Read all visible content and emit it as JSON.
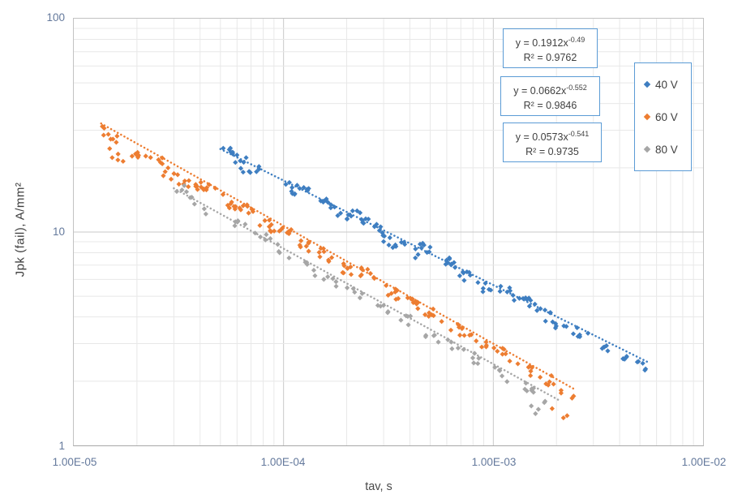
{
  "axes": {
    "x": {
      "title": "tav, s",
      "ticks": [
        "1.00E-05",
        "1.00E-04",
        "1.00E-03",
        "1.00E-02"
      ]
    },
    "y": {
      "title": "Jpk (fail),  A/mm²",
      "ticks": [
        "100",
        "10",
        "1"
      ]
    }
  },
  "annotations": {
    "boxes": [
      {
        "eq_base": "y = 0.1912x",
        "eq_exp": "-0.49",
        "r2": "R² = 0.9762"
      },
      {
        "eq_base": "y = 0.0662x",
        "eq_exp": "-0.552",
        "r2": "R² = 0.9846"
      },
      {
        "eq_base": "y = 0.0573x",
        "eq_exp": "-0.541",
        "r2": "R² = 0.9735"
      }
    ]
  },
  "legend": {
    "items": [
      {
        "label": "40 V"
      },
      {
        "label": "60 V"
      },
      {
        "label": "80 V"
      }
    ]
  },
  "colors": {
    "grid_minor": "#e8e8e8",
    "grid_major": "#c9c9c9",
    "tick_label": "#64799c",
    "annotation_border": "#5b9bd5"
  },
  "chart_data": {
    "type": "scatter",
    "x_scale": "log",
    "y_scale": "log",
    "xlim": [
      1e-05,
      0.01
    ],
    "ylim": [
      1,
      100
    ],
    "xlabel": "tav, s",
    "ylabel": "Jpk (fail),  A/mm2",
    "legend_position": "right-inside",
    "grid": "log major+minor, both axes",
    "series": [
      {
        "name": "40 V",
        "color": "#3e7ec1",
        "marker": "diamond",
        "fit": {
          "a": 0.1912,
          "b": -0.49,
          "r2": 0.9762,
          "label": "y = 0.1912x^-0.49"
        },
        "trend_range": [
          5e-05,
          0.0055
        ],
        "clusters": [
          [
            5.6e-05,
            1.02,
            7
          ],
          [
            6.3e-05,
            0.93,
            6
          ],
          [
            7.1e-05,
            1.0,
            5
          ],
          [
            0.000105,
            0.97,
            7
          ],
          [
            0.00012,
            1.0,
            6
          ],
          [
            0.000155,
            0.97,
            6
          ],
          [
            0.000185,
            0.93,
            7
          ],
          [
            0.00023,
            1.03,
            8
          ],
          [
            0.000275,
            1.0,
            8
          ],
          [
            0.00032,
            0.92,
            6
          ],
          [
            0.0004,
            0.93,
            6
          ],
          [
            0.00047,
            1.02,
            8
          ],
          [
            0.0006,
            1.0,
            9
          ],
          [
            0.00073,
            0.95,
            7
          ],
          [
            0.0009,
            0.92,
            6
          ],
          [
            0.00115,
            1.0,
            7
          ],
          [
            0.00145,
            1.02,
            8
          ],
          [
            0.00175,
            0.95,
            6
          ],
          [
            0.0021,
            0.93,
            6
          ],
          [
            0.0026,
            0.95,
            6
          ],
          [
            0.0032,
            0.92,
            5
          ],
          [
            0.004,
            0.95,
            5
          ],
          [
            0.005,
            0.93,
            5
          ]
        ]
      },
      {
        "name": "60 V",
        "color": "#ed7d31",
        "marker": "diamond",
        "fit": {
          "a": 0.0662,
          "b": -0.552,
          "r2": 0.9846,
          "label": "y = 0.0662x^-0.552"
        },
        "trend_range": [
          1.35e-05,
          0.00245
        ],
        "clusters": [
          [
            1.5e-05,
            0.93,
            8
          ],
          [
            1.6e-05,
            0.78,
            5
          ],
          [
            2e-05,
            0.88,
            6
          ],
          [
            2.4e-05,
            0.95,
            6
          ],
          [
            2.9e-05,
            0.88,
            7
          ],
          [
            3.6e-05,
            0.9,
            8
          ],
          [
            4.4e-05,
            0.95,
            8
          ],
          [
            5.5e-05,
            0.92,
            8
          ],
          [
            6.8e-05,
            0.95,
            8
          ],
          [
            8.5e-05,
            0.92,
            8
          ],
          [
            0.000105,
            0.95,
            8
          ],
          [
            0.00013,
            0.92,
            7
          ],
          [
            0.00016,
            0.95,
            8
          ],
          [
            0.0002,
            0.92,
            8
          ],
          [
            0.00025,
            0.98,
            8
          ],
          [
            0.00032,
            0.95,
            8
          ],
          [
            0.0004,
            0.95,
            8
          ],
          [
            0.00052,
            0.95,
            7
          ],
          [
            0.00066,
            0.95,
            7
          ],
          [
            0.00085,
            0.92,
            7
          ],
          [
            0.0011,
            0.95,
            7
          ],
          [
            0.0014,
            0.92,
            6
          ],
          [
            0.0018,
            0.95,
            6
          ],
          [
            0.0022,
            0.9,
            4
          ],
          [
            0.0021,
            0.72,
            3
          ]
        ]
      },
      {
        "name": "80 V",
        "color": "#a6a6a6",
        "marker": "diamond",
        "fit": {
          "a": 0.0573,
          "b": -0.541,
          "r2": 0.9735,
          "label": "y = 0.0573x^-0.541"
        },
        "trend_range": [
          3e-05,
          0.0021
        ],
        "clusters": [
          [
            3.4e-05,
            1.03,
            5
          ],
          [
            3.9e-05,
            0.95,
            4
          ],
          [
            6.3e-05,
            1.0,
            5
          ],
          [
            8e-05,
            1.0,
            5
          ],
          [
            0.0001,
            0.95,
            4
          ],
          [
            0.00013,
            0.95,
            5
          ],
          [
            0.00017,
            0.95,
            5
          ],
          [
            0.00022,
            0.97,
            5
          ],
          [
            0.00029,
            0.95,
            5
          ],
          [
            0.00038,
            0.97,
            5
          ],
          [
            0.0005,
            0.95,
            5
          ],
          [
            0.00066,
            0.97,
            5
          ],
          [
            0.00086,
            0.95,
            5
          ],
          [
            0.0011,
            0.95,
            5
          ],
          [
            0.0014,
            0.97,
            5
          ],
          [
            0.0017,
            0.95,
            4
          ],
          [
            0.0016,
            0.8,
            3
          ]
        ]
      }
    ]
  }
}
